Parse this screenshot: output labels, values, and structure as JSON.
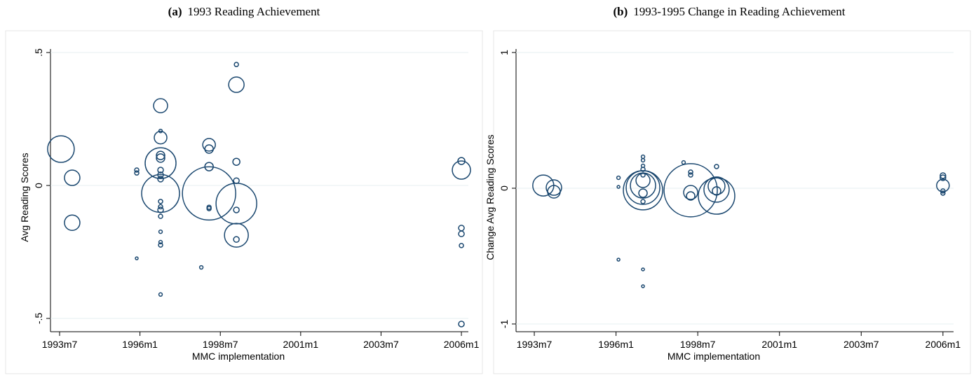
{
  "chart_data": [
    {
      "type": "bubble",
      "panel_label": "(a)",
      "title": "1993 Reading Achievement",
      "xlabel": "MMC implementation",
      "ylabel": "Avg Reading Scores",
      "color": "#1a476f",
      "grid": true,
      "xlim": [
        398.6,
        554.6
      ],
      "xticks": [
        {
          "value": 402,
          "label": "1993m7"
        },
        {
          "value": 432,
          "label": "1996m1"
        },
        {
          "value": 462,
          "label": "1998m7"
        },
        {
          "value": 492,
          "label": "2001m1"
        },
        {
          "value": 522,
          "label": "2003m7"
        },
        {
          "value": 552,
          "label": "2006m1"
        }
      ],
      "ylim": [
        -0.55,
        0.566
      ],
      "yticks": [
        {
          "value": -0.5,
          "label": "-.5"
        },
        0,
        {
          "value": 0.5,
          "label": ".5"
        }
      ],
      "x": [
        402.5,
        406.7,
        406.7,
        430.8,
        430.8,
        430.8,
        439.7,
        439.7,
        439.7,
        439.7,
        439.7,
        439.7,
        439.7,
        439.7,
        439.7,
        439.7,
        439.7,
        439.7,
        439.7,
        439.7,
        439.7,
        439.7,
        439.7,
        439.7,
        454.9,
        457.8,
        457.8,
        457.8,
        457.8,
        457.8,
        457.8,
        468,
        468,
        468,
        468,
        468,
        468,
        468,
        468,
        552,
        552,
        552,
        552,
        552,
        552
      ],
      "values": [
        0.137,
        0.029,
        -0.14,
        0.058,
        0.047,
        -0.274,
        0.3,
        0.205,
        0.18,
        0.113,
        0.103,
        0.084,
        0.058,
        0.04,
        0.024,
        -0.03,
        -0.06,
        -0.08,
        -0.092,
        -0.116,
        -0.174,
        -0.213,
        -0.224,
        -0.41,
        -0.308,
        0.153,
        0.137,
        0.071,
        -0.03,
        -0.082,
        -0.087,
        0.455,
        0.379,
        0.089,
        0.018,
        -0.068,
        -0.092,
        -0.187,
        -0.203,
        0.092,
        0.058,
        -0.16,
        -0.182,
        -0.226,
        -0.521
      ],
      "sizes": [
        361,
        121,
        121,
        9,
        9,
        4,
        100,
        6,
        81,
        36,
        36,
        484,
        16,
        16,
        16,
        729,
        9,
        9,
        16,
        9,
        6,
        6,
        9,
        6,
        6,
        81,
        36,
        36,
        1444,
        9,
        9,
        9,
        121,
        25,
        16,
        841,
        16,
        289,
        16,
        25,
        169,
        16,
        16,
        9,
        16
      ]
    },
    {
      "type": "bubble",
      "panel_label": "(b)",
      "title": "1993-1995 Change in Reading Achievement",
      "xlabel": "MMC implementation",
      "ylabel": "Change Avg Reading Scores",
      "color": "#1a476f",
      "grid": true,
      "xlim": [
        395.3,
        555.9
      ],
      "xticks": [
        {
          "value": 402,
          "label": "1993m7"
        },
        {
          "value": 432,
          "label": "1996m1"
        },
        {
          "value": 462,
          "label": "1998m7"
        },
        {
          "value": 492,
          "label": "2001m1"
        },
        {
          "value": 522,
          "label": "2003m7"
        },
        {
          "value": 552,
          "label": "2006m1"
        }
      ],
      "ylim": [
        -1.057,
        1.129
      ],
      "yticks": [
        -1,
        0,
        1
      ],
      "x": [
        405.3,
        409.2,
        409.2,
        432.9,
        432.9,
        432.9,
        441.9,
        441.9,
        441.9,
        441.9,
        441.9,
        441.9,
        441.9,
        441.9,
        441.9,
        441.9,
        441.9,
        441.9,
        441.9,
        456.8,
        459.4,
        459.4,
        459.4,
        459.4,
        459.4,
        468.9,
        468.9,
        468.9,
        468.9,
        468.9,
        552,
        552,
        552,
        552,
        552
      ],
      "values": [
        0.02,
        0.005,
        -0.026,
        0.077,
        0.01,
        -0.526,
        0.232,
        0.206,
        0.165,
        0.139,
        0.098,
        0.057,
        0.02,
        0.005,
        -0.015,
        -0.036,
        -0.098,
        -0.598,
        -0.722,
        0.19,
        0.119,
        0.098,
        -0.015,
        -0.031,
        -0.057,
        0.015,
        -0.01,
        -0.057,
        -0.02,
        0.16,
        0.093,
        0.077,
        0.02,
        -0.02,
        -0.036
      ],
      "sizes": [
        225,
        121,
        81,
        6,
        4,
        4,
        6,
        6,
        6,
        9,
        9,
        100,
        324,
        576,
        784,
        36,
        9,
        4,
        4,
        6,
        9,
        9,
        1444,
        100,
        36,
        144,
        324,
        676,
        36,
        9,
        16,
        16,
        81,
        9,
        9
      ]
    }
  ]
}
